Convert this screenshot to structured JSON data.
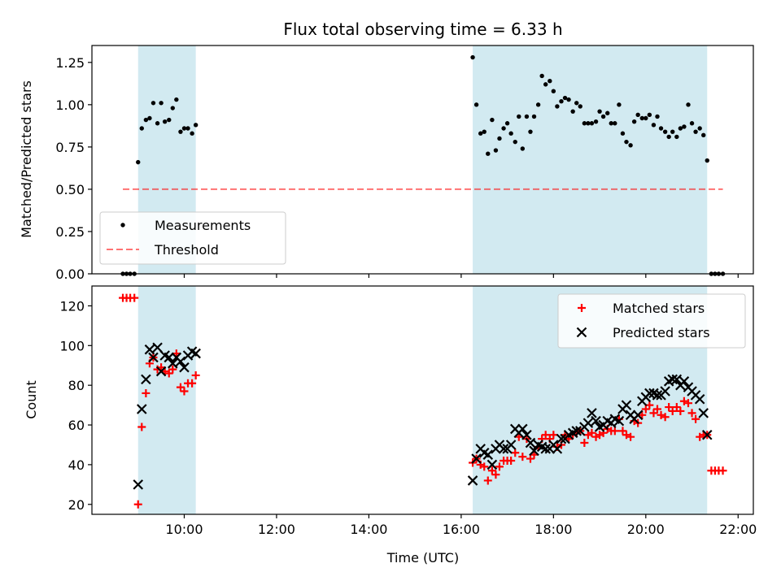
{
  "chart_data": [
    {
      "type": "scatter",
      "title": "Flux total observing time = 6.33 h",
      "xlabel": "",
      "ylabel": "Matched/Predicted stars",
      "xlim": [
        8.0,
        22.33
      ],
      "ylim": [
        0.0,
        1.35
      ],
      "yticks": [
        0.0,
        0.25,
        0.5,
        0.75,
        1.0,
        1.25
      ],
      "ytick_labels": [
        "0.00",
        "0.25",
        "0.50",
        "0.75",
        "1.00",
        "1.25"
      ],
      "xticks": [
        10,
        12,
        14,
        16,
        18,
        20,
        22
      ],
      "shaded_intervals": [
        [
          9.0,
          10.25
        ],
        [
          16.25,
          21.33
        ]
      ],
      "shade_color": "#add8e6",
      "series": [
        {
          "name": "Measurements",
          "marker": "dot",
          "color": "#000000",
          "x": [
            8.67,
            8.75,
            8.83,
            8.92,
            9.0,
            9.08,
            9.17,
            9.25,
            9.33,
            9.42,
            9.5,
            9.58,
            9.67,
            9.75,
            9.83,
            9.92,
            10.0,
            10.08,
            10.17,
            10.25,
            16.25,
            16.33,
            16.42,
            16.5,
            16.58,
            16.67,
            16.75,
            16.83,
            16.92,
            17.0,
            17.08,
            17.17,
            17.25,
            17.33,
            17.42,
            17.5,
            17.58,
            17.67,
            17.75,
            17.83,
            17.92,
            18.0,
            18.08,
            18.17,
            18.25,
            18.33,
            18.42,
            18.5,
            18.58,
            18.67,
            18.75,
            18.83,
            18.92,
            19.0,
            19.08,
            19.17,
            19.25,
            19.33,
            19.42,
            19.5,
            19.58,
            19.67,
            19.75,
            19.83,
            19.92,
            20.0,
            20.08,
            20.17,
            20.25,
            20.33,
            20.42,
            20.5,
            20.58,
            20.67,
            20.75,
            20.83,
            20.92,
            21.0,
            21.08,
            21.17,
            21.25,
            21.33,
            21.42,
            21.5,
            21.58,
            21.67
          ],
          "y": [
            0.0,
            0.0,
            0.0,
            0.0,
            0.66,
            0.86,
            0.91,
            0.92,
            1.01,
            0.89,
            1.01,
            0.9,
            0.91,
            0.98,
            1.03,
            0.84,
            0.86,
            0.86,
            0.83,
            0.88,
            1.28,
            1.0,
            0.83,
            0.84,
            0.71,
            0.91,
            0.73,
            0.8,
            0.86,
            0.89,
            0.83,
            0.78,
            0.93,
            0.74,
            0.93,
            0.84,
            0.93,
            1.0,
            1.17,
            1.12,
            1.14,
            1.08,
            0.99,
            1.02,
            1.04,
            1.03,
            0.96,
            1.01,
            0.99,
            0.89,
            0.89,
            0.89,
            0.9,
            0.96,
            0.93,
            0.95,
            0.89,
            0.89,
            1.0,
            0.83,
            0.78,
            0.76,
            0.9,
            0.94,
            0.92,
            0.92,
            0.94,
            0.88,
            0.93,
            0.86,
            0.84,
            0.81,
            0.84,
            0.81,
            0.86,
            0.87,
            1.0,
            0.89,
            0.84,
            0.86,
            0.82,
            0.67,
            0.0,
            0.0,
            0.0,
            0.0
          ]
        },
        {
          "name": "Threshold",
          "marker": "dashed-line",
          "color": "#ff0000",
          "x": [
            8.67,
            21.67
          ],
          "y": [
            0.5,
            0.5
          ]
        }
      ],
      "legend": {
        "placement": "lower-left",
        "entries": [
          "Measurements",
          "Threshold"
        ]
      }
    },
    {
      "type": "scatter",
      "title": "",
      "xlabel": "Time (UTC)",
      "ylabel": "Count",
      "xlim": [
        8.0,
        22.33
      ],
      "ylim": [
        15,
        130
      ],
      "yticks": [
        20,
        40,
        60,
        80,
        100,
        120
      ],
      "ytick_labels": [
        "20",
        "40",
        "60",
        "80",
        "100",
        "120"
      ],
      "xticks": [
        10,
        12,
        14,
        16,
        18,
        20,
        22
      ],
      "xtick_labels": [
        "10:00",
        "12:00",
        "14:00",
        "16:00",
        "18:00",
        "20:00",
        "22:00"
      ],
      "shaded_intervals": [
        [
          9.0,
          10.25
        ],
        [
          16.25,
          21.33
        ]
      ],
      "shade_color": "#add8e6",
      "series": [
        {
          "name": "Matched stars",
          "marker": "plus",
          "color": "#ff0000",
          "x": [
            8.67,
            8.75,
            8.83,
            8.92,
            9.0,
            9.08,
            9.17,
            9.25,
            9.33,
            9.42,
            9.5,
            9.58,
            9.67,
            9.75,
            9.83,
            9.92,
            10.0,
            10.08,
            10.17,
            10.25,
            16.25,
            16.33,
            16.42,
            16.5,
            16.58,
            16.67,
            16.75,
            16.83,
            16.92,
            17.0,
            17.08,
            17.17,
            17.25,
            17.33,
            17.42,
            17.5,
            17.58,
            17.67,
            17.75,
            17.83,
            17.92,
            18.0,
            18.08,
            18.17,
            18.25,
            18.33,
            18.42,
            18.5,
            18.58,
            18.67,
            18.75,
            18.83,
            18.92,
            19.0,
            19.08,
            19.17,
            19.25,
            19.33,
            19.42,
            19.5,
            19.58,
            19.67,
            19.75,
            19.83,
            19.92,
            20.0,
            20.08,
            20.17,
            20.25,
            20.33,
            20.42,
            20.5,
            20.58,
            20.67,
            20.75,
            20.83,
            20.92,
            21.0,
            21.08,
            21.17,
            21.25,
            21.33,
            21.42,
            21.5,
            21.58,
            21.67
          ],
          "y": [
            124,
            124,
            124,
            124,
            20,
            59,
            76,
            91,
            94,
            88,
            89,
            87,
            86,
            88,
            96,
            79,
            77,
            81,
            81,
            85,
            41,
            43,
            40,
            39,
            32,
            37,
            35,
            39,
            42,
            42,
            42,
            46,
            54,
            44,
            53,
            43,
            45,
            49,
            53,
            55,
            53,
            55,
            49,
            50,
            55,
            53,
            55,
            56,
            57,
            51,
            55,
            56,
            54,
            55,
            56,
            58,
            57,
            57,
            63,
            57,
            55,
            54,
            62,
            61,
            65,
            68,
            70,
            66,
            68,
            65,
            64,
            69,
            67,
            69,
            67,
            72,
            71,
            66,
            63,
            54,
            55,
            55,
            37,
            37,
            37,
            37
          ]
        },
        {
          "name": "Predicted stars",
          "marker": "x",
          "color": "#000000",
          "x": [
            9.0,
            9.08,
            9.17,
            9.25,
            9.33,
            9.42,
            9.5,
            9.58,
            9.67,
            9.75,
            9.83,
            9.92,
            10.0,
            10.08,
            10.17,
            10.25,
            16.25,
            16.33,
            16.42,
            16.5,
            16.58,
            16.67,
            16.75,
            16.83,
            16.92,
            17.0,
            17.08,
            17.17,
            17.25,
            17.33,
            17.42,
            17.5,
            17.58,
            17.67,
            17.75,
            17.83,
            17.92,
            18.0,
            18.08,
            18.17,
            18.25,
            18.33,
            18.42,
            18.5,
            18.58,
            18.67,
            18.75,
            18.83,
            18.92,
            19.0,
            19.08,
            19.17,
            19.25,
            19.33,
            19.42,
            19.5,
            19.58,
            19.67,
            19.75,
            19.83,
            19.92,
            20.0,
            20.08,
            20.17,
            20.25,
            20.33,
            20.42,
            20.5,
            20.58,
            20.67,
            20.75,
            20.83,
            20.92,
            21.0,
            21.08,
            21.17,
            21.25,
            21.33
          ],
          "y": [
            30,
            68,
            83,
            98,
            94,
            99,
            87,
            95,
            94,
            91,
            94,
            92,
            89,
            95,
            97,
            96,
            32,
            43,
            48,
            46,
            45,
            40,
            48,
            50,
            48,
            48,
            50,
            58,
            56,
            58,
            55,
            51,
            47,
            50,
            49,
            48,
            48,
            50,
            48,
            53,
            53,
            55,
            56,
            57,
            57,
            59,
            61,
            66,
            62,
            59,
            60,
            62,
            61,
            63,
            62,
            68,
            70,
            65,
            63,
            65,
            72,
            74,
            76,
            76,
            75,
            75,
            77,
            82,
            83,
            83,
            80,
            82,
            79,
            77,
            75,
            73,
            66,
            55
          ]
        }
      ],
      "legend": {
        "placement": "upper-right",
        "entries": [
          "Matched stars",
          "Predicted stars"
        ]
      }
    }
  ]
}
